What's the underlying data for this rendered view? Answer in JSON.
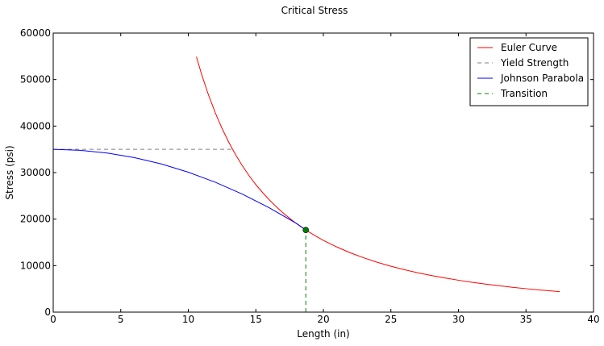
{
  "chart_data": {
    "type": "line",
    "title": "Critical Stress",
    "xlabel": "Length (in)",
    "ylabel": "Stress (psi)",
    "xlim": [
      0,
      40
    ],
    "ylim": [
      0,
      60000
    ],
    "xticks": [
      0,
      5,
      10,
      15,
      20,
      25,
      30,
      35,
      40
    ],
    "yticks": [
      0,
      10000,
      20000,
      30000,
      40000,
      50000,
      60000
    ],
    "grid": false,
    "legend_position": "top-right",
    "series": [
      {
        "name": "Euler Curve",
        "style": "solid",
        "color": "#ff0000",
        "x": [
          10.6,
          11.0,
          11.5,
          12.0,
          12.5,
          13.0,
          13.5,
          14.0,
          14.5,
          15.0,
          15.5,
          16.0,
          16.5,
          17.0,
          17.5,
          18.0,
          18.7,
          19.5,
          20.0,
          21.0,
          22.0,
          23.0,
          24.0,
          25.0,
          26.0,
          27.0,
          28.0,
          29.0,
          30.0,
          31.0,
          32.0,
          33.0,
          34.0,
          35.0,
          36.0,
          37.5
        ],
        "y": [
          54900,
          50990,
          46650,
          42850,
          39490,
          36510,
          33860,
          31480,
          29350,
          27420,
          25710,
          24130,
          22690,
          21380,
          20170,
          19050,
          17650,
          16240,
          15430,
          14000,
          12750,
          11670,
          10710,
          9870,
          9130,
          8460,
          7870,
          7340,
          6860,
          6420,
          6030,
          5670,
          5340,
          5040,
          4760,
          4390
        ]
      },
      {
        "name": "Yield Strength",
        "style": "dashed",
        "color": "#808080",
        "x": [
          0,
          13.3
        ],
        "y": [
          35000,
          35000
        ]
      },
      {
        "name": "Johnson Parabola",
        "style": "solid",
        "color": "#0000ff",
        "x": [
          0,
          2,
          4,
          6,
          8,
          10,
          12,
          14,
          16,
          18,
          18.7
        ],
        "y": [
          35000,
          34800,
          34210,
          33230,
          31860,
          30090,
          27930,
          25380,
          22430,
          19090,
          17650
        ]
      },
      {
        "name": "Transition",
        "style": "dashed",
        "color": "#008000",
        "x": [
          18.7,
          18.7
        ],
        "y": [
          0,
          17650
        ]
      }
    ],
    "marker": {
      "x": 18.7,
      "y": 17650,
      "color": "#008000"
    }
  }
}
